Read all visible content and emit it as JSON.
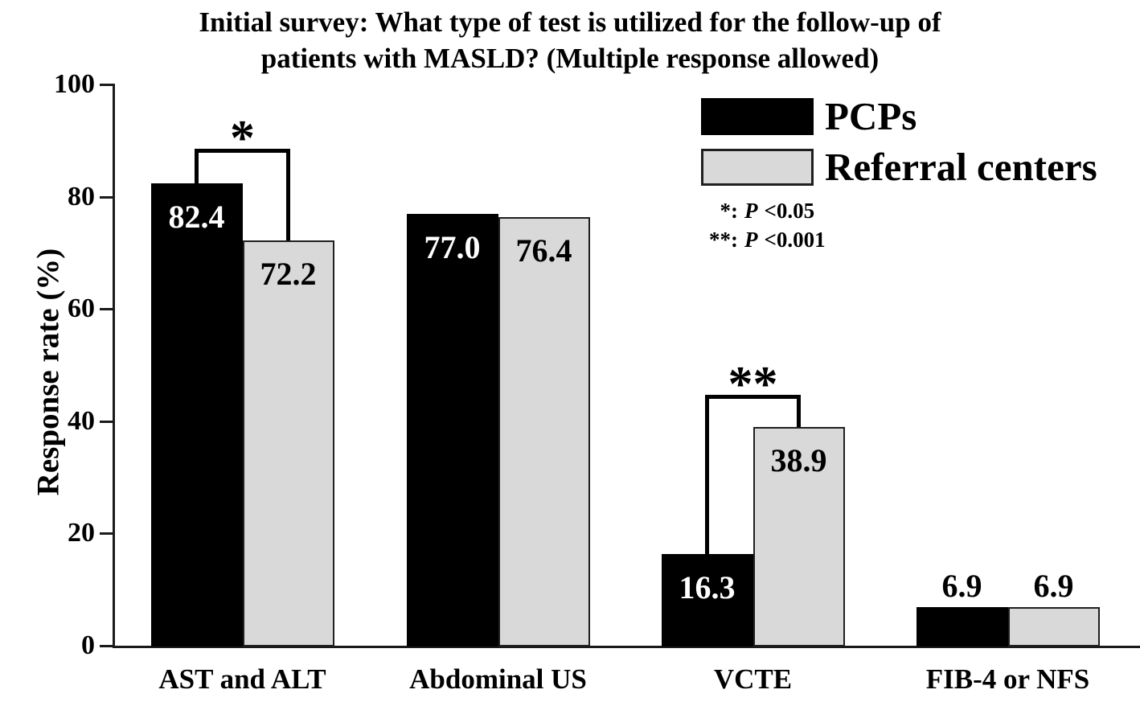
{
  "chart_data": {
    "type": "bar",
    "title": "Initial survey: What type of test is utilized for the follow-up of patients with MASLD? (Multiple response allowed)",
    "title_lines": [
      "Initial survey: What type of test is utilized for the follow-up of",
      "patients with MASLD? (Multiple response allowed)"
    ],
    "categories": [
      "AST and ALT",
      "Abdominal US",
      "VCTE",
      "FIB-4 or NFS"
    ],
    "series": [
      {
        "name": "PCPs",
        "color": "#000000",
        "border_color": "#000000",
        "label_color": "#ffffff",
        "values": [
          82.4,
          77.0,
          16.3,
          6.9
        ],
        "value_labels": [
          "82.4",
          "77.0",
          "16.3",
          "6.9"
        ]
      },
      {
        "name": "Referral centers",
        "color": "#d9d9d9",
        "border_color": "#1f1f1f",
        "label_color": "#000000",
        "values": [
          72.2,
          76.4,
          38.9,
          6.9
        ],
        "value_labels": [
          "72.2",
          "76.4",
          "38.9",
          "6.9"
        ]
      }
    ],
    "xlabel": "",
    "ylabel": "Response rate (%)",
    "ylim": [
      0,
      100
    ],
    "yticks": [
      0,
      20,
      40,
      60,
      80,
      100
    ],
    "grid": false,
    "legend_position": "upper right",
    "annotations": [
      {
        "symbol": "*",
        "group_index": 0,
        "bracket_height_pct": 88.5
      },
      {
        "symbol": "**",
        "group_index": 2,
        "bracket_height_pct": 44.7
      }
    ],
    "notes": [
      {
        "symbol": "*:",
        "stat": "P",
        "value": "<0.05"
      },
      {
        "symbol": "**:",
        "stat": "P",
        "value": "<0.001"
      }
    ]
  }
}
